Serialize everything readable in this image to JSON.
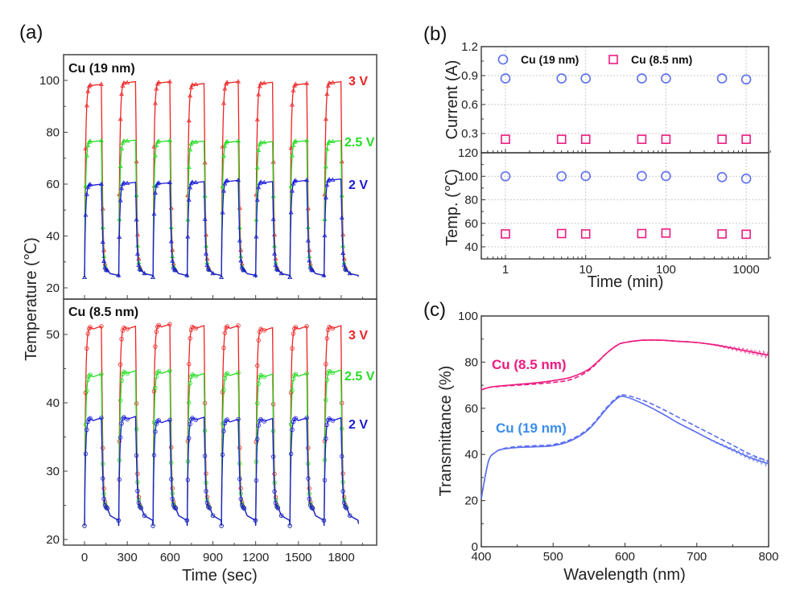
{
  "figure": {
    "panels": {
      "a": {
        "label": "(a)"
      },
      "b": {
        "label": "(b)"
      },
      "c": {
        "label": "(c)"
      }
    }
  },
  "chart_data": [
    {
      "id": "a-top",
      "type": "line",
      "panel": "(a)",
      "sample_label": "Cu (19 nm)",
      "xlabel": "Time (sec)",
      "ylabel": "Temperature (℃)",
      "xlim": [
        -80,
        1970
      ],
      "ylim": [
        15,
        110
      ],
      "xticks": [
        0,
        300,
        600,
        900,
        1200,
        1500,
        1800
      ],
      "yticks": [
        20,
        40,
        60,
        80,
        100
      ],
      "ytick_labels": [
        "20",
        "40",
        "60",
        "80",
        "100"
      ],
      "cycle": {
        "count": 8,
        "period_sec": 240,
        "on_sec": 120,
        "baseline": 24
      },
      "series": [
        {
          "name": "3 V",
          "color": "#ee2222",
          "plateau": [
            98.5,
            99.5,
            99.5,
            98.8,
            99.5,
            99.3,
            98.8,
            99.5
          ],
          "marker": "triangle"
        },
        {
          "name": "2.5 V",
          "color": "#22dd22",
          "plateau": [
            76.8,
            77,
            76.8,
            76.6,
            76.6,
            76.4,
            76.8,
            76.8
          ],
          "marker": "triangle"
        },
        {
          "name": "2 V",
          "color": "#1a1ad8",
          "plateau": [
            60,
            60.7,
            60.6,
            61,
            61.5,
            61,
            61.5,
            62
          ],
          "marker": "triangle"
        }
      ]
    },
    {
      "id": "a-bottom",
      "type": "line",
      "panel": "(a)",
      "sample_label": "Cu (8.5 nm)",
      "xlabel": "Time (sec)",
      "ylabel": "Temperature (℃)",
      "xlim": [
        -80,
        1970
      ],
      "ylim": [
        19,
        55
      ],
      "xticks": [
        0,
        300,
        600,
        900,
        1200,
        1500,
        1800
      ],
      "xtick_labels": [
        "0",
        "300",
        "600",
        "900",
        "1200",
        "1500",
        "1800"
      ],
      "yticks": [
        20,
        30,
        40,
        50
      ],
      "ytick_labels": [
        "20",
        "30",
        "40",
        "50"
      ],
      "cycle": {
        "count": 8,
        "period_sec": 240,
        "on_sec": 120,
        "baseline": 22
      },
      "series": [
        {
          "name": "3 V",
          "color": "#ee2222",
          "plateau": [
            51.2,
            51.2,
            51.5,
            51.3,
            51.3,
            51,
            51.2,
            51.3
          ],
          "marker": "circle"
        },
        {
          "name": "2.5 V",
          "color": "#22dd22",
          "plateau": [
            44.2,
            44.7,
            44.7,
            44.3,
            44.4,
            44.2,
            44.3,
            44.8
          ],
          "marker": "circle"
        },
        {
          "name": "2 V",
          "color": "#1a1ad8",
          "plateau": [
            37.8,
            38,
            37.5,
            37.9,
            37.6,
            37.7,
            37.8,
            37.8
          ],
          "marker": "circle"
        }
      ]
    },
    {
      "id": "b-top",
      "type": "scatter",
      "panel": "(b)",
      "ylabel": "Current (A)",
      "xscale": "log",
      "xlim": [
        0.5,
        2000
      ],
      "ylim": [
        0.12,
        1.2
      ],
      "yticks": [
        0.3,
        0.6,
        0.9,
        1.2
      ],
      "ytick_labels": [
        "0.3",
        "0.6",
        "0.9",
        "1.2"
      ],
      "grid": true,
      "legend": {
        "placement": "top",
        "entries": [
          "Cu (19 nm)",
          "Cu (8.5 nm)"
        ]
      },
      "x": [
        1,
        5,
        10,
        50,
        100,
        500,
        1000
      ],
      "series": [
        {
          "name": "Cu (19 nm)",
          "color": "#5b6ef0",
          "marker": "circle",
          "values": [
            0.87,
            0.87,
            0.87,
            0.87,
            0.87,
            0.87,
            0.86
          ]
        },
        {
          "name": "Cu (8.5 nm)",
          "color": "#ee1a80",
          "marker": "square",
          "values": [
            0.24,
            0.24,
            0.24,
            0.24,
            0.24,
            0.24,
            0.24
          ]
        }
      ]
    },
    {
      "id": "b-bottom",
      "type": "scatter",
      "panel": "(b)",
      "xlabel": "Time (min)",
      "ylabel": "Temp. (℃)",
      "xscale": "log",
      "xlim": [
        0.5,
        2000
      ],
      "ylim": [
        30,
        120
      ],
      "xticks": [
        1,
        10,
        100,
        1000
      ],
      "xtick_labels": [
        "1",
        "10",
        "100",
        "1000"
      ],
      "yticks": [
        40,
        60,
        80,
        100,
        120
      ],
      "ytick_labels": [
        "40",
        "60",
        "80",
        "100",
        "120"
      ],
      "grid": true,
      "x": [
        1,
        5,
        10,
        50,
        100,
        500,
        1000
      ],
      "series": [
        {
          "name": "Cu (19 nm)",
          "color": "#5b6ef0",
          "marker": "circle",
          "values": [
            100,
            100,
            100.2,
            100.2,
            100.2,
            99.3,
            98
          ]
        },
        {
          "name": "Cu (8.5 nm)",
          "color": "#ee1a80",
          "marker": "square",
          "values": [
            51,
            51.3,
            51,
            51.3,
            51.7,
            51,
            50.7
          ]
        }
      ]
    },
    {
      "id": "c",
      "type": "line",
      "panel": "(c)",
      "xlabel": "Wavelength (nm)",
      "ylabel": "Transmittance (%)",
      "xlim": [
        400,
        800
      ],
      "ylim": [
        0,
        100
      ],
      "xticks": [
        400,
        500,
        600,
        700,
        800
      ],
      "xtick_labels": [
        "400",
        "500",
        "600",
        "700",
        "800"
      ],
      "yticks": [
        0,
        20,
        40,
        60,
        80,
        100
      ],
      "ytick_labels": [
        "0",
        "20",
        "40",
        "60",
        "80",
        "100"
      ],
      "x": [
        400,
        410,
        420,
        430,
        450,
        475,
        500,
        525,
        550,
        575,
        590,
        600,
        625,
        650,
        675,
        700,
        725,
        750,
        775,
        800
      ],
      "series": [
        {
          "name": "Cu (8.5 nm)",
          "color": "#ee1a80",
          "style": "solid",
          "values": [
            68,
            69,
            69.5,
            69.8,
            70.3,
            71,
            72,
            73.5,
            77,
            84,
            87.5,
            88.5,
            89.5,
            89.5,
            89,
            88.5,
            87.5,
            86,
            84.5,
            83
          ]
        },
        {
          "name": "Cu (8.5 nm)",
          "color": "#ee1a80",
          "style": "dashed",
          "values": [
            68,
            69,
            69.3,
            69.6,
            70,
            70.5,
            71.2,
            72.5,
            76.5,
            84,
            87.5,
            88.5,
            89.5,
            89.5,
            89,
            88.5,
            87.5,
            86,
            84.5,
            83
          ]
        },
        {
          "name": "Cu (19 nm)",
          "color": "#5b6ef0",
          "style": "solid",
          "values": [
            21,
            37,
            41,
            42.3,
            43,
            43.3,
            43.8,
            46,
            51,
            60,
            64.5,
            65,
            62,
            58,
            53.5,
            49.5,
            45.5,
            42,
            38.5,
            36
          ]
        },
        {
          "name": "Cu (19 nm)",
          "color": "#5b6ef0",
          "style": "dashed",
          "values": [
            21,
            37,
            41,
            42.5,
            43.4,
            43.8,
            44.3,
            46.5,
            51.5,
            60.5,
            65,
            65.7,
            63.5,
            60,
            56,
            52,
            48,
            44,
            40,
            37
          ]
        }
      ],
      "annotations": [
        {
          "text": "Cu (8.5 nm)",
          "color": "#ee1a80"
        },
        {
          "text": "Cu (19 nm)",
          "color": "#3a8cf0"
        }
      ]
    }
  ]
}
